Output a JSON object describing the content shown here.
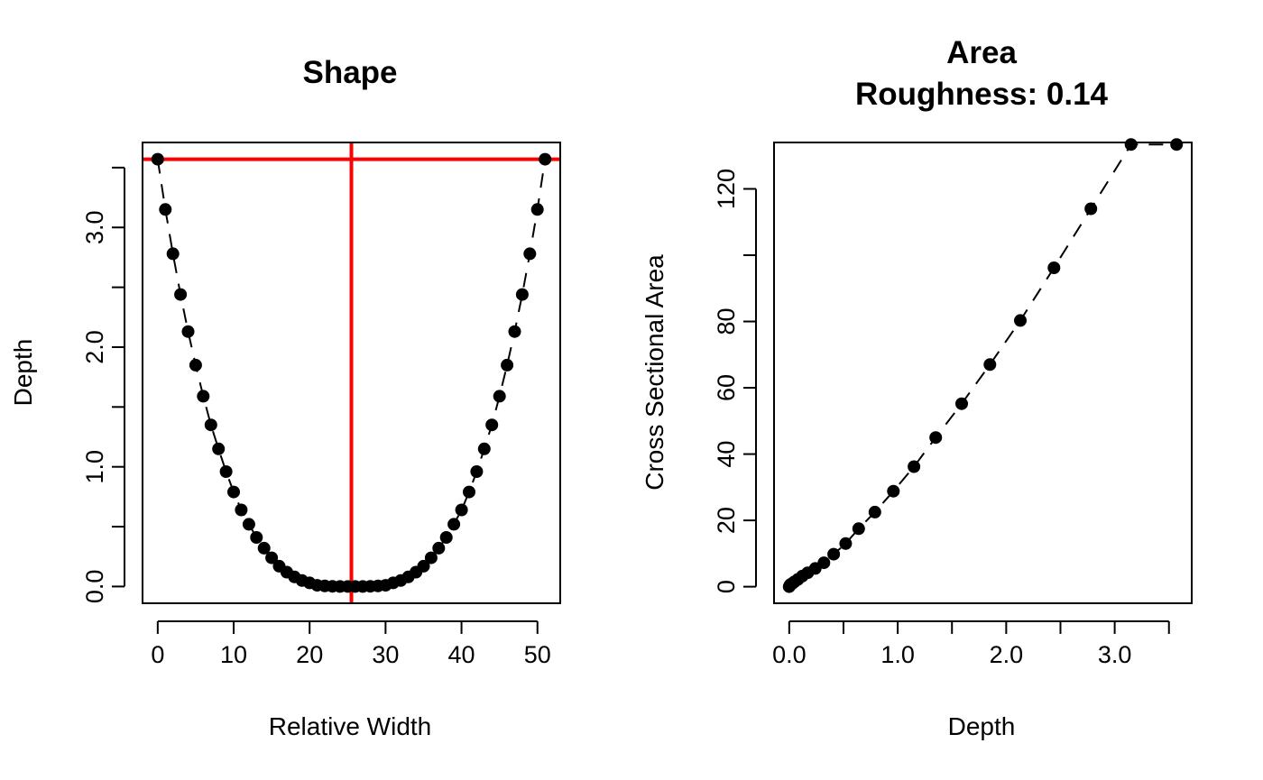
{
  "colors": {
    "points": "#000000",
    "reference_lines": "#ff0000",
    "axis": "#000000"
  },
  "chart_data": [
    {
      "type": "scatter",
      "title": "Shape",
      "xlabel": "Relative Width",
      "ylabel": "Depth",
      "xlim": [
        -2,
        53
      ],
      "ylim": [
        -0.14,
        3.71
      ],
      "x_ticks": [
        0,
        10,
        20,
        30,
        40,
        50
      ],
      "x_tick_labels": [
        "0",
        "10",
        "20",
        "30",
        "40",
        "50"
      ],
      "y_ticks": [
        0,
        0.5,
        1,
        1.5,
        2,
        2.5,
        3,
        3.5
      ],
      "y_tick_labels": [
        "0.0",
        "",
        "1.0",
        "",
        "2.0",
        "",
        "3.0",
        ""
      ],
      "line_style": "dashed",
      "grid": false,
      "reference_lines": [
        {
          "orientation": "vertical",
          "value": 25.5
        },
        {
          "orientation": "horizontal",
          "value": 3.57
        }
      ],
      "series": [
        {
          "x": [
            0,
            1,
            2,
            3,
            4,
            5,
            6,
            7,
            8,
            9,
            10,
            11,
            12,
            13,
            14,
            15,
            16,
            17,
            18,
            19,
            20,
            21,
            22,
            23,
            24,
            25,
            26,
            27,
            28,
            29,
            30,
            31,
            32,
            33,
            34,
            35,
            36,
            37,
            38,
            39,
            40,
            41,
            42,
            43,
            44,
            45,
            46,
            47,
            48,
            49,
            50,
            51
          ],
          "y": [
            3.57,
            3.15,
            2.78,
            2.44,
            2.13,
            1.85,
            1.59,
            1.35,
            1.15,
            0.96,
            0.79,
            0.64,
            0.52,
            0.41,
            0.32,
            0.24,
            0.17,
            0.12,
            0.08,
            0.05,
            0.03,
            0.01,
            0.005,
            0.002,
            0.0,
            0.0,
            0.0,
            0.0,
            0.002,
            0.005,
            0.01,
            0.03,
            0.05,
            0.08,
            0.12,
            0.17,
            0.24,
            0.32,
            0.41,
            0.52,
            0.64,
            0.79,
            0.96,
            1.15,
            1.35,
            1.59,
            1.85,
            2.13,
            2.44,
            2.78,
            3.15,
            3.57
          ]
        }
      ]
    },
    {
      "type": "scatter",
      "title": "Area",
      "subtitle": "Roughness: 0.14",
      "xlabel": "Depth",
      "ylabel": "Cross Sectional Area",
      "xlim": [
        -0.14,
        3.71
      ],
      "ylim": [
        -5,
        134
      ],
      "x_ticks": [
        0,
        0.5,
        1,
        1.5,
        2,
        2.5,
        3,
        3.5
      ],
      "x_tick_labels": [
        "0.0",
        "",
        "1.0",
        "",
        "2.0",
        "",
        "3.0",
        ""
      ],
      "y_ticks": [
        0,
        20,
        40,
        60,
        80,
        100,
        120
      ],
      "y_tick_labels": [
        "0",
        "20",
        "40",
        "60",
        "80",
        "",
        "120"
      ],
      "line_style": "dashed",
      "grid": false,
      "series": [
        {
          "x": [
            0.0,
            0.005,
            0.01,
            0.03,
            0.05,
            0.08,
            0.12,
            0.17,
            0.24,
            0.32,
            0.41,
            0.52,
            0.64,
            0.79,
            0.96,
            1.15,
            1.35,
            1.59,
            1.85,
            2.13,
            2.44,
            2.78,
            3.15,
            3.57
          ],
          "y": [
            0.0,
            0.3,
            0.6,
            1.0,
            1.5,
            2.2,
            3.2,
            4.2,
            5.5,
            7.2,
            9.8,
            13.0,
            17.5,
            22.5,
            28.8,
            36.2,
            45.0,
            55.2,
            67.0,
            80.3,
            96.2,
            114.0,
            133.4,
            133.4
          ]
        }
      ]
    }
  ]
}
